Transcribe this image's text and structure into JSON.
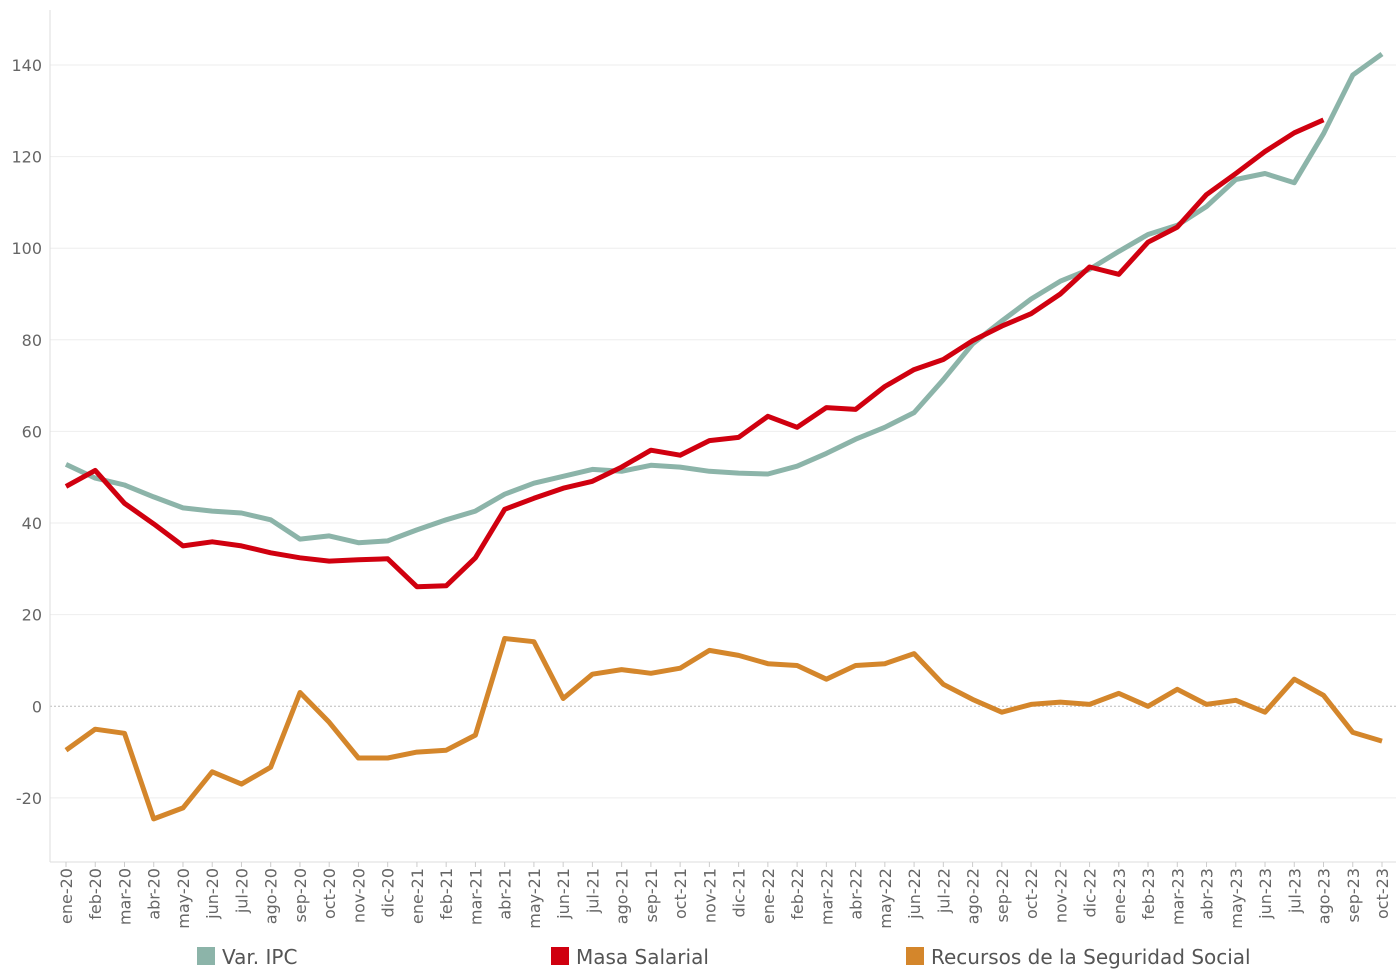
{
  "chart_data": {
    "type": "line",
    "categories": [
      "ene-20",
      "feb-20",
      "mar-20",
      "abr-20",
      "may-20",
      "jun-20",
      "jul-20",
      "ago-20",
      "sep-20",
      "oct-20",
      "nov-20",
      "dic-20",
      "ene-21",
      "feb-21",
      "mar-21",
      "abr-21",
      "may-21",
      "jun-21",
      "jul-21",
      "ago-21",
      "sep-21",
      "oct-21",
      "nov-21",
      "dic-21",
      "ene-22",
      "feb-22",
      "mar-22",
      "abr-22",
      "may-22",
      "jun-22",
      "jul-22",
      "ago-22",
      "sep-22",
      "oct-22",
      "nov-22",
      "dic-22",
      "ene-23",
      "feb-23",
      "mar-23",
      "abr-23",
      "may-23",
      "jun-23",
      "jul-23",
      "ago-23",
      "sep-23",
      "oct-23"
    ],
    "series": [
      {
        "name": "Var. IPC",
        "color": "#8cb4a9",
        "values": [
          52.8,
          49.8,
          48.3,
          45.7,
          43.3,
          42.6,
          42.2,
          40.7,
          36.5,
          37.2,
          35.7,
          36.1,
          38.5,
          40.7,
          42.6,
          46.3,
          48.7,
          50.2,
          51.7,
          51.3,
          52.6,
          52.2,
          51.3,
          50.9,
          50.7,
          52.4,
          55.2,
          58.3,
          60.9,
          64.1,
          71.3,
          79.1,
          84.1,
          88.9,
          92.8,
          95.4,
          99.3,
          103.0,
          105.0,
          109.1,
          115.0,
          116.3,
          114.3,
          125.0,
          137.8,
          142.4
        ]
      },
      {
        "name": "Masa Salarial",
        "color": "#d0000f",
        "values": [
          48.0,
          51.5,
          44.3,
          39.8,
          35.0,
          35.9,
          35.0,
          33.5,
          32.4,
          31.7,
          32.0,
          32.2,
          26.1,
          26.3,
          32.4,
          43.0,
          45.4,
          47.6,
          49.1,
          52.2,
          55.9,
          54.8,
          58.0,
          58.7,
          63.3,
          60.9,
          65.2,
          64.8,
          69.8,
          73.5,
          75.7,
          79.8,
          83.0,
          85.7,
          90.0,
          95.9,
          94.3,
          101.3,
          104.6,
          111.7,
          116.3,
          121.1,
          125.2,
          128.0,
          null,
          null
        ]
      },
      {
        "name": "Recursos de la Seguridad Social",
        "color": "#d4862b",
        "values": [
          -9.6,
          -5.0,
          -5.9,
          -24.6,
          -22.2,
          -14.3,
          -17.0,
          -13.3,
          3.0,
          -3.5,
          -11.3,
          -11.3,
          -10.0,
          -9.6,
          -6.3,
          14.8,
          14.1,
          1.7,
          7.0,
          8.0,
          7.2,
          8.3,
          12.2,
          11.1,
          9.3,
          8.9,
          5.9,
          8.9,
          9.3,
          11.5,
          4.8,
          1.5,
          -1.3,
          0.4,
          0.9,
          0.4,
          2.8,
          0,
          3.7,
          0.4,
          1.3,
          -1.3,
          5.9,
          2.4,
          -5.7,
          -7.6
        ]
      }
    ],
    "ylim": [
      -34,
      152
    ],
    "yticks": [
      -20,
      0,
      20,
      40,
      60,
      80,
      100,
      120,
      140
    ],
    "grid": true
  }
}
